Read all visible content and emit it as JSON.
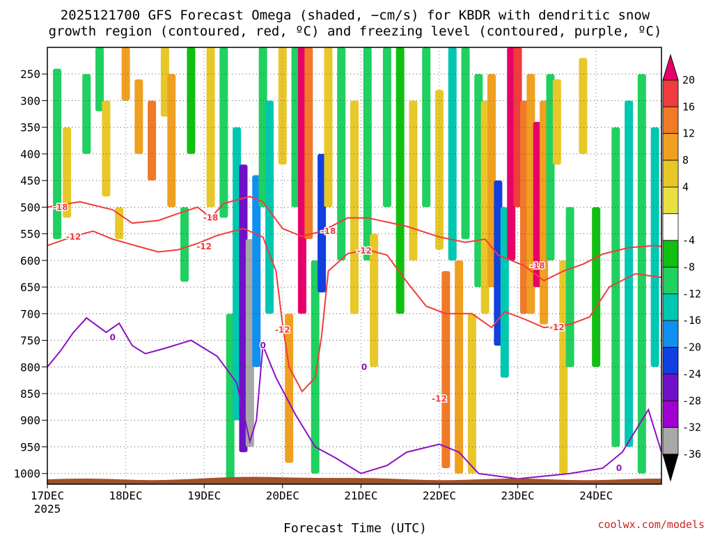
{
  "chart_data": {
    "type": "heatmap",
    "title_line1": "2025121700 GFS Forecast Omega (shaded, −cm/s) for KBDR with dendritic snow",
    "title_line2": "growth region (contoured, red, ºC) and freezing level (contoured, purple, ºC)",
    "xlabel": "Forecast Time (UTC)",
    "ylabel": "",
    "credit": "coolwx.com/models",
    "x_range_hours": [
      0,
      188
    ],
    "y_range_hpa": [
      200,
      1020
    ],
    "y_ticks": [
      "250",
      "300",
      "350",
      "400",
      "450",
      "500",
      "550",
      "600",
      "650",
      "700",
      "750",
      "800",
      "850",
      "900",
      "950",
      "1000"
    ],
    "x_ticks": [
      {
        "label": "17DEC",
        "sub": "2025",
        "hour": 0
      },
      {
        "label": "18DEC",
        "sub": "",
        "hour": 24
      },
      {
        "label": "19DEC",
        "sub": "",
        "hour": 48
      },
      {
        "label": "20DEC",
        "sub": "",
        "hour": 72
      },
      {
        "label": "21DEC",
        "sub": "",
        "hour": 96
      },
      {
        "label": "22DEC",
        "sub": "",
        "hour": 120
      },
      {
        "label": "23DEC",
        "sub": "",
        "hour": 144
      },
      {
        "label": "24DEC",
        "sub": "",
        "hour": 168
      }
    ],
    "colorbar": {
      "levels": [
        "20",
        "16",
        "12",
        "8",
        "4",
        "-4",
        "-8",
        "-12",
        "-16",
        "-20",
        "-24",
        "-28",
        "-32",
        "-36"
      ],
      "colors": [
        "#e8006a",
        "#f03c3c",
        "#f07a28",
        "#f0a020",
        "#e8c828",
        "#e8e040",
        "#ffffff",
        "#10c010",
        "#20d060",
        "#00c8b0",
        "#1090f0",
        "#1040e0",
        "#7010c8",
        "#a000d0",
        "#a8a8a8",
        "#000000"
      ]
    },
    "omega_cells": [
      {
        "t": 3,
        "p0": 240,
        "p1": 560,
        "v": -8
      },
      {
        "t": 6,
        "p0": 350,
        "p1": 520,
        "v": 6
      },
      {
        "t": 12,
        "p0": 250,
        "p1": 400,
        "v": -8
      },
      {
        "t": 16,
        "p0": 200,
        "p1": 320,
        "v": -8
      },
      {
        "t": 18,
        "p0": 300,
        "p1": 480,
        "v": 6
      },
      {
        "t": 22,
        "p0": 500,
        "p1": 560,
        "v": 6
      },
      {
        "t": 24,
        "p0": 200,
        "p1": 300,
        "v": 10
      },
      {
        "t": 28,
        "p0": 260,
        "p1": 400,
        "v": 9
      },
      {
        "t": 32,
        "p0": 300,
        "p1": 450,
        "v": 14
      },
      {
        "t": 36,
        "p0": 200,
        "p1": 330,
        "v": 6
      },
      {
        "t": 38,
        "p0": 250,
        "p1": 500,
        "v": 10
      },
      {
        "t": 42,
        "p0": 500,
        "p1": 640,
        "v": -8
      },
      {
        "t": 44,
        "p0": 200,
        "p1": 400,
        "v": -6
      },
      {
        "t": 50,
        "p0": 200,
        "p1": 500,
        "v": 7
      },
      {
        "t": 54,
        "p0": 200,
        "p1": 520,
        "v": -8
      },
      {
        "t": 56,
        "p0": 700,
        "p1": 1010,
        "v": -10
      },
      {
        "t": 58,
        "p0": 350,
        "p1": 900,
        "v": -14
      },
      {
        "t": 60,
        "p0": 420,
        "p1": 960,
        "v": -26
      },
      {
        "t": 62,
        "p0": 560,
        "p1": 950,
        "v": -34
      },
      {
        "t": 64,
        "p0": 440,
        "p1": 800,
        "v": -18
      },
      {
        "t": 66,
        "p0": 200,
        "p1": 500,
        "v": -8
      },
      {
        "t": 68,
        "p0": 300,
        "p1": 700,
        "v": -12
      },
      {
        "t": 72,
        "p0": 200,
        "p1": 420,
        "v": 6
      },
      {
        "t": 74,
        "p0": 700,
        "p1": 980,
        "v": 8
      },
      {
        "t": 76,
        "p0": 200,
        "p1": 500,
        "v": -8
      },
      {
        "t": 78,
        "p0": 200,
        "p1": 700,
        "v": 20
      },
      {
        "t": 80,
        "p0": 200,
        "p1": 560,
        "v": 12
      },
      {
        "t": 82,
        "p0": 600,
        "p1": 1000,
        "v": -8
      },
      {
        "t": 84,
        "p0": 400,
        "p1": 660,
        "v": -20
      },
      {
        "t": 86,
        "p0": 200,
        "p1": 500,
        "v": 6
      },
      {
        "t": 90,
        "p0": 200,
        "p1": 600,
        "v": -8
      },
      {
        "t": 94,
        "p0": 300,
        "p1": 700,
        "v": 6
      },
      {
        "t": 98,
        "p0": 200,
        "p1": 600,
        "v": -8
      },
      {
        "t": 100,
        "p0": 550,
        "p1": 800,
        "v": 6
      },
      {
        "t": 104,
        "p0": 200,
        "p1": 500,
        "v": -8
      },
      {
        "t": 108,
        "p0": 200,
        "p1": 700,
        "v": -6
      },
      {
        "t": 112,
        "p0": 300,
        "p1": 600,
        "v": 7
      },
      {
        "t": 116,
        "p0": 200,
        "p1": 500,
        "v": -9
      },
      {
        "t": 120,
        "p0": 280,
        "p1": 580,
        "v": 6
      },
      {
        "t": 122,
        "p0": 620,
        "p1": 990,
        "v": 14
      },
      {
        "t": 124,
        "p0": 200,
        "p1": 600,
        "v": -12
      },
      {
        "t": 126,
        "p0": 600,
        "p1": 1000,
        "v": 8
      },
      {
        "t": 128,
        "p0": 200,
        "p1": 560,
        "v": -10
      },
      {
        "t": 130,
        "p0": 700,
        "p1": 1000,
        "v": 6
      },
      {
        "t": 132,
        "p0": 250,
        "p1": 650,
        "v": -10
      },
      {
        "t": 134,
        "p0": 300,
        "p1": 700,
        "v": 6
      },
      {
        "t": 136,
        "p0": 250,
        "p1": 650,
        "v": 9
      },
      {
        "t": 138,
        "p0": 450,
        "p1": 760,
        "v": -22
      },
      {
        "t": 140,
        "p0": 500,
        "p1": 820,
        "v": -12
      },
      {
        "t": 142,
        "p0": 200,
        "p1": 600,
        "v": 20
      },
      {
        "t": 144,
        "p0": 200,
        "p1": 500,
        "v": 18
      },
      {
        "t": 146,
        "p0": 300,
        "p1": 700,
        "v": 12
      },
      {
        "t": 148,
        "p0": 250,
        "p1": 700,
        "v": 8
      },
      {
        "t": 150,
        "p0": 340,
        "p1": 650,
        "v": 20
      },
      {
        "t": 152,
        "p0": 300,
        "p1": 720,
        "v": 10
      },
      {
        "t": 154,
        "p0": 250,
        "p1": 600,
        "v": -10
      },
      {
        "t": 156,
        "p0": 260,
        "p1": 420,
        "v": 6
      },
      {
        "t": 158,
        "p0": 600,
        "p1": 1000,
        "v": 6
      },
      {
        "t": 160,
        "p0": 500,
        "p1": 800,
        "v": -8
      },
      {
        "t": 164,
        "p0": 220,
        "p1": 400,
        "v": 6
      },
      {
        "t": 168,
        "p0": 500,
        "p1": 800,
        "v": -6
      },
      {
        "t": 174,
        "p0": 350,
        "p1": 950,
        "v": -8
      },
      {
        "t": 178,
        "p0": 300,
        "p1": 950,
        "v": -12
      },
      {
        "t": 182,
        "p0": 250,
        "p1": 1000,
        "v": -10
      },
      {
        "t": 186,
        "p0": 350,
        "p1": 800,
        "v": -14
      }
    ],
    "contours": [
      {
        "label": "-18",
        "color": "red",
        "pts": [
          [
            0,
            500
          ],
          [
            10,
            490
          ],
          [
            20,
            505
          ],
          [
            26,
            530
          ],
          [
            34,
            525
          ],
          [
            40,
            512
          ],
          [
            46,
            500
          ],
          [
            50,
            520
          ],
          [
            54,
            493
          ],
          [
            62,
            480
          ],
          [
            66,
            490
          ],
          [
            72,
            540
          ],
          [
            78,
            555
          ],
          [
            84,
            545
          ],
          [
            92,
            520
          ],
          [
            98,
            520
          ],
          [
            110,
            536
          ],
          [
            120,
            556
          ],
          [
            128,
            566
          ],
          [
            134,
            560
          ],
          [
            138,
            590
          ],
          [
            146,
            610
          ],
          [
            152,
            638
          ],
          [
            158,
            620
          ],
          [
            164,
            607
          ],
          [
            170,
            588
          ],
          [
            178,
            576
          ],
          [
            186,
            572
          ],
          [
            188,
            574
          ]
        ],
        "labels": [
          [
            4,
            500
          ],
          [
            50,
            520
          ],
          [
            86,
            545
          ],
          [
            150,
            610
          ]
        ]
      },
      {
        "label": "-12",
        "color": "red",
        "pts": [
          [
            0,
            572
          ],
          [
            8,
            555
          ],
          [
            14,
            545
          ],
          [
            20,
            560
          ],
          [
            28,
            574
          ],
          [
            34,
            584
          ],
          [
            40,
            580
          ],
          [
            46,
            568
          ],
          [
            52,
            553
          ],
          [
            60,
            540
          ],
          [
            66,
            556
          ],
          [
            70,
            620
          ],
          [
            72,
            720
          ],
          [
            74,
            800
          ],
          [
            78,
            846
          ],
          [
            82,
            820
          ],
          [
            84,
            740
          ],
          [
            86,
            620
          ],
          [
            92,
            587
          ],
          [
            98,
            580
          ],
          [
            104,
            590
          ],
          [
            110,
            640
          ],
          [
            116,
            686
          ],
          [
            122,
            700
          ],
          [
            130,
            700
          ],
          [
            136,
            726
          ],
          [
            140,
            696
          ],
          [
            146,
            710
          ],
          [
            152,
            726
          ],
          [
            160,
            720
          ],
          [
            166,
            706
          ],
          [
            172,
            650
          ],
          [
            180,
            625
          ],
          [
            188,
            632
          ]
        ],
        "labels": [
          [
            8,
            556
          ],
          [
            48,
            574
          ],
          [
            72,
            730
          ],
          [
            97,
            582
          ],
          [
            120,
            860
          ],
          [
            156,
            726
          ]
        ]
      },
      {
        "label": "0",
        "color": "purple",
        "pts": [
          [
            0,
            800
          ],
          [
            4,
            770
          ],
          [
            8,
            735
          ],
          [
            12,
            708
          ],
          [
            18,
            735
          ],
          [
            22,
            718
          ],
          [
            26,
            760
          ],
          [
            30,
            775
          ],
          [
            36,
            765
          ],
          [
            44,
            750
          ],
          [
            52,
            780
          ],
          [
            58,
            830
          ],
          [
            62,
            940
          ],
          [
            64,
            900
          ],
          [
            66,
            760
          ],
          [
            70,
            820
          ],
          [
            76,
            890
          ],
          [
            82,
            950
          ],
          [
            88,
            970
          ],
          [
            96,
            1000
          ],
          [
            104,
            985
          ],
          [
            110,
            960
          ],
          [
            120,
            945
          ],
          [
            126,
            960
          ],
          [
            132,
            1000
          ],
          [
            144,
            1010
          ],
          [
            160,
            1000
          ],
          [
            170,
            990
          ],
          [
            176,
            960
          ],
          [
            180,
            920
          ],
          [
            184,
            880
          ],
          [
            188,
            960
          ]
        ],
        "labels": [
          [
            20,
            745
          ],
          [
            66,
            760
          ],
          [
            97,
            800
          ],
          [
            175,
            990
          ]
        ]
      }
    ]
  }
}
